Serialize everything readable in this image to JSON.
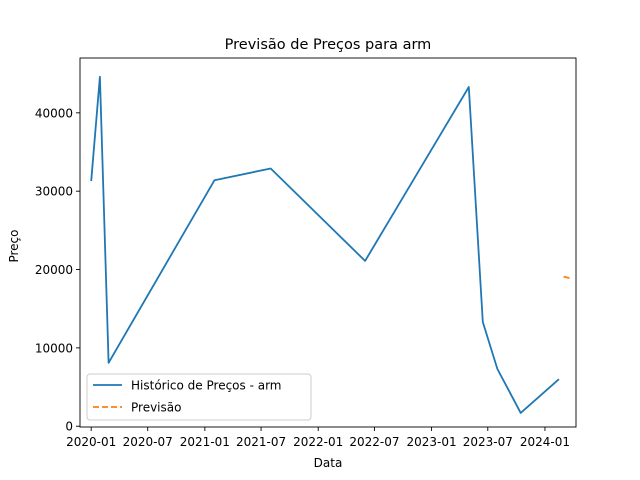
{
  "chart_data": {
    "type": "line",
    "title": "Previsão de Preços para arm",
    "xlabel": "Data",
    "ylabel": "Preço",
    "xlim": [
      "2019-11-26",
      "2024-04-10"
    ],
    "ylim": [
      -100,
      47000
    ],
    "x_ticks": [
      {
        "date": "2020-01-01",
        "label": "2020-01"
      },
      {
        "date": "2020-07-01",
        "label": "2020-07"
      },
      {
        "date": "2021-01-01",
        "label": "2021-01"
      },
      {
        "date": "2021-07-01",
        "label": "2021-07"
      },
      {
        "date": "2022-01-01",
        "label": "2022-01"
      },
      {
        "date": "2022-07-01",
        "label": "2022-07"
      },
      {
        "date": "2023-01-01",
        "label": "2023-01"
      },
      {
        "date": "2023-07-01",
        "label": "2023-07"
      },
      {
        "date": "2024-01-01",
        "label": "2024-01"
      }
    ],
    "y_ticks": [
      0,
      10000,
      20000,
      30000,
      40000
    ],
    "legend_position": "lower left",
    "grid": false,
    "series": [
      {
        "name": "Histórico de Preços - arm",
        "color": "#1f77b4",
        "style": "solid",
        "points": [
          {
            "x": "2020-01-01",
            "y": 31300
          },
          {
            "x": "2020-01-29",
            "y": 44600
          },
          {
            "x": "2020-02-26",
            "y": 8100
          },
          {
            "x": "2021-02-01",
            "y": 31400
          },
          {
            "x": "2021-08-01",
            "y": 32900
          },
          {
            "x": "2022-06-01",
            "y": 21100
          },
          {
            "x": "2023-05-01",
            "y": 43300
          },
          {
            "x": "2023-06-15",
            "y": 13300
          },
          {
            "x": "2023-08-01",
            "y": 7300
          },
          {
            "x": "2023-10-15",
            "y": 1700
          },
          {
            "x": "2024-02-15",
            "y": 6000
          }
        ]
      },
      {
        "name": "Previsão",
        "color": "#ff7f0e",
        "style": "dashed",
        "points": [
          {
            "x": "2024-03-01",
            "y": 19100
          },
          {
            "x": "2024-03-20",
            "y": 18900
          }
        ]
      }
    ]
  }
}
